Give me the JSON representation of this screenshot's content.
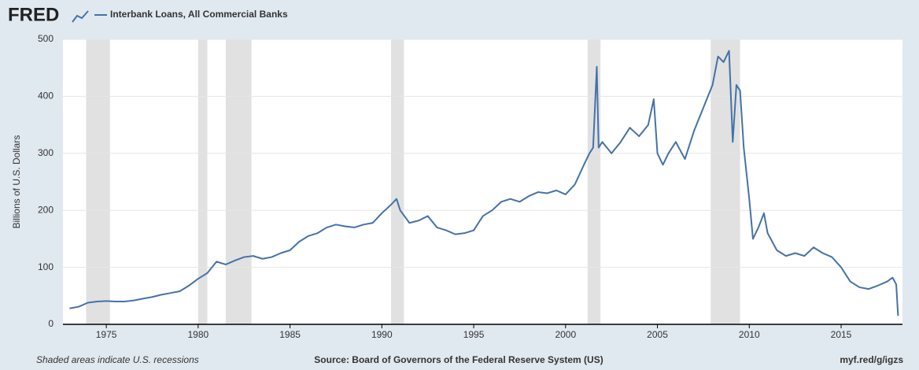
{
  "logo": "FRED",
  "chart_data": {
    "type": "line",
    "series": [
      {
        "name": "Interbank Loans, All Commercial Banks",
        "color": "#4572a7",
        "values": [
          28,
          31,
          38,
          40,
          41,
          40,
          40,
          42,
          45,
          48,
          52,
          55,
          58,
          68,
          80,
          90,
          110,
          105,
          112,
          118,
          120,
          115,
          118,
          125,
          130,
          145,
          155,
          160,
          170,
          175,
          172,
          170,
          175,
          178,
          195,
          210,
          220,
          200,
          178,
          182,
          190,
          170,
          165,
          158,
          160,
          165,
          190,
          200,
          215,
          220,
          215,
          225,
          232,
          230,
          235,
          228,
          245,
          280,
          300,
          310,
          452,
          310,
          320,
          300,
          320,
          345,
          330,
          350,
          395,
          300,
          280,
          300,
          320,
          290,
          340,
          380,
          420,
          470,
          460,
          480,
          320,
          420,
          410,
          310,
          220,
          150,
          170,
          195,
          160,
          130,
          120,
          125,
          120,
          135,
          125,
          118,
          100,
          75,
          65,
          62,
          68,
          75,
          82,
          70,
          15
        ]
      }
    ],
    "x": [
      1973.0,
      1973.5,
      1974.0,
      1974.5,
      1975.0,
      1975.5,
      1976.0,
      1976.5,
      1977.0,
      1977.5,
      1978.0,
      1978.5,
      1979.0,
      1979.5,
      1980.0,
      1980.5,
      1981.0,
      1981.5,
      1982.0,
      1982.5,
      1983.0,
      1983.5,
      1984.0,
      1984.5,
      1985.0,
      1985.5,
      1986.0,
      1986.5,
      1987.0,
      1987.5,
      1988.0,
      1988.5,
      1989.0,
      1989.5,
      1990.0,
      1990.5,
      1990.8,
      1991.0,
      1991.5,
      1992.0,
      1992.5,
      1993.0,
      1993.5,
      1994.0,
      1994.5,
      1995.0,
      1995.5,
      1996.0,
      1996.5,
      1997.0,
      1997.5,
      1998.0,
      1998.5,
      1999.0,
      1999.5,
      2000.0,
      2000.5,
      2001.0,
      2001.3,
      2001.5,
      2001.7,
      2001.8,
      2002.0,
      2002.5,
      2003.0,
      2003.5,
      2004.0,
      2004.5,
      2004.8,
      2005.0,
      2005.3,
      2005.6,
      2006.0,
      2006.5,
      2007.0,
      2007.5,
      2008.0,
      2008.3,
      2008.6,
      2008.9,
      2009.1,
      2009.3,
      2009.5,
      2009.7,
      2010.0,
      2010.2,
      2010.5,
      2010.8,
      2011.0,
      2011.5,
      2012.0,
      2012.5,
      2013.0,
      2013.5,
      2014.0,
      2014.5,
      2015.0,
      2015.5,
      2016.0,
      2016.5,
      2017.0,
      2017.5,
      2017.8,
      2018.0,
      2018.1
    ],
    "recessions": [
      [
        1973.9,
        1975.2
      ],
      [
        1980.0,
        1980.5
      ],
      [
        1981.5,
        1982.9
      ],
      [
        1990.5,
        1991.2
      ],
      [
        2001.2,
        2001.9
      ],
      [
        2007.9,
        2009.5
      ]
    ],
    "xlim": [
      1972.64,
      2018.34
    ],
    "xticks": [
      1975,
      1980,
      1985,
      1990,
      1995,
      2000,
      2005,
      2010,
      2015
    ],
    "ylim": [
      0,
      500
    ],
    "yticks": [
      0,
      100,
      200,
      300,
      400,
      500
    ],
    "ylabel": "Billions of U.S. Dollars",
    "grid": true,
    "note": "Shaded areas indicate U.S. recessions",
    "source": "Source: Board of Governors of the Federal Reserve System (US)",
    "link": "myf.red/g/igzs"
  }
}
